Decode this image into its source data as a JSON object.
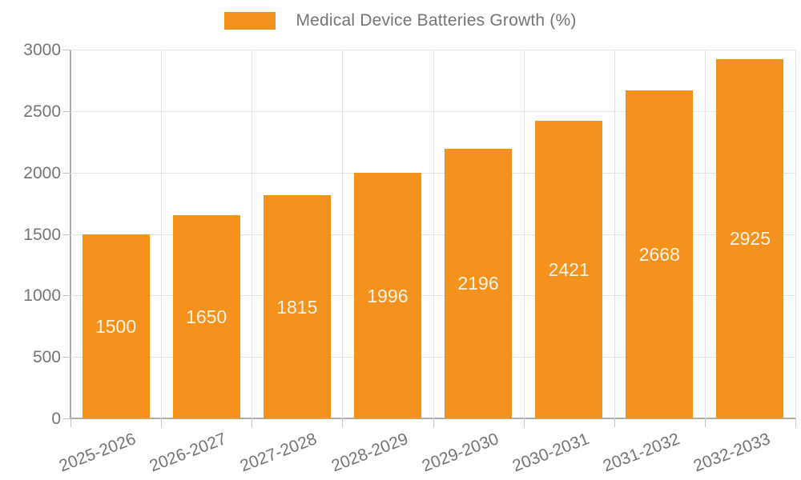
{
  "legend": {
    "label": "Medical Device Batteries Growth (%)"
  },
  "colors": {
    "bar": "#f5921e",
    "value_label": "#fdf4e6",
    "grid": "#e4e4e4",
    "axis": "#adadad",
    "tick_text": "#757575",
    "background": "#ffffff"
  },
  "chart_data": {
    "type": "bar",
    "title": "Medical Device Batteries Growth (%)",
    "categories": [
      "2025-2026",
      "2026-2027",
      "2027-2028",
      "2028-2029",
      "2029-2030",
      "2030-2031",
      "2031-2032",
      "2032-2033"
    ],
    "series": [
      {
        "name": "Medical Device Batteries Growth (%)",
        "values": [
          1500,
          1650,
          1815,
          1996,
          2196,
          2421,
          2668,
          2925
        ]
      }
    ],
    "value_labels": [
      1500,
      1650,
      1815,
      1996,
      2196,
      2421,
      2668,
      2925
    ],
    "xlabel": "",
    "ylabel": "",
    "ylim": [
      0,
      3000
    ],
    "yticks": [
      0,
      500,
      1000,
      1500,
      2000,
      2500,
      3000
    ],
    "ytick_labels": [
      "0",
      "500",
      "1000",
      "1500",
      "2000",
      "2500",
      "3000"
    ],
    "grid": true,
    "legend_position": "top-center",
    "x_label_rotation_deg": -21,
    "value_label_position": "inside-center"
  }
}
